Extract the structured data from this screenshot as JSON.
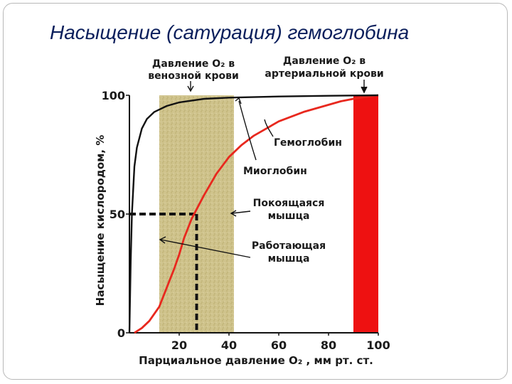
{
  "slide": {
    "title": "Насыщение (сатурация) гемоглобина"
  },
  "colors": {
    "hemoglobin": "#e8281e",
    "myoglobin": "#111111",
    "venous_band": "#c9bd85",
    "arterial_band": "#ee1111",
    "guide_lines": "#111111"
  },
  "chart_data": {
    "type": "line",
    "title": "Насыщение (сатурация) гемоглобина",
    "xlabel": "Парциальное давление O₂ , мм рт. ст.",
    "ylabel": "Насыщение кислородом, %",
    "xlim": [
      0,
      100
    ],
    "ylim": [
      0,
      100
    ],
    "x_ticks": [
      20,
      40,
      60,
      80,
      100
    ],
    "y_ticks": [
      0,
      50,
      100
    ],
    "grid": false,
    "series": [
      {
        "name": "Гемоглобин",
        "color": "#e8281e",
        "x": [
          2,
          5,
          8,
          10,
          12,
          15,
          18,
          20,
          22,
          25,
          27,
          30,
          35,
          40,
          45,
          50,
          55,
          60,
          65,
          70,
          75,
          80,
          85,
          90,
          95,
          100
        ],
        "y": [
          0,
          2,
          5,
          8,
          11,
          19,
          27,
          33,
          40,
          48,
          52,
          58,
          67,
          74,
          79,
          83,
          86,
          89,
          91,
          93,
          94.5,
          96,
          97.5,
          98.5,
          99.3,
          100
        ]
      },
      {
        "name": "Миоглобин",
        "color": "#111111",
        "x": [
          0,
          0.5,
          1,
          2,
          3,
          5,
          7,
          10,
          15,
          20,
          30,
          40,
          60,
          80,
          100
        ],
        "y": [
          0,
          30,
          50,
          70,
          78,
          86,
          90,
          93,
          95.5,
          97,
          98.5,
          99,
          99.5,
          99.8,
          100
        ]
      }
    ],
    "shaded_regions": [
      {
        "label": "Давление O₂ в венозной крови",
        "x_range": [
          12,
          42
        ],
        "color": "#c9bd85"
      },
      {
        "label": "Давление O₂ в артериальной крови",
        "x_range": [
          90,
          100
        ],
        "color": "#ee1111"
      }
    ],
    "reference_lines": {
      "label": "dashed guide to 50% saturation",
      "x": 27,
      "y": 50
    },
    "annotations": {
      "venous_label_line1": "Давление O₂ в",
      "venous_label_line2": "венозной крови",
      "arterial_label_line1": "Давление O₂ в",
      "arterial_label_line2": "артериальной крови",
      "hemoglobin_label": "Гемоглобин",
      "myoglobin_label": "Миоглобин",
      "resting_line1": "Покоящаяся",
      "resting_line2": "мышца",
      "working_line1": "Работающая",
      "working_line2": "мышца"
    }
  }
}
